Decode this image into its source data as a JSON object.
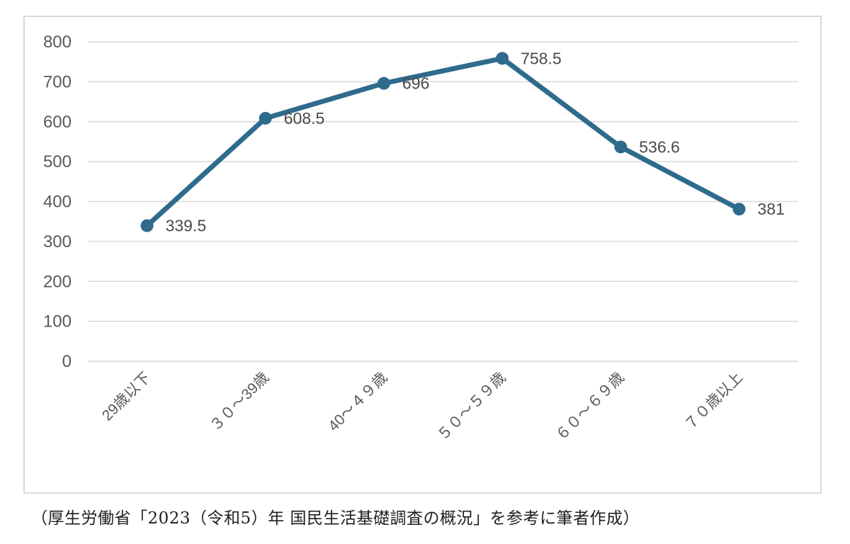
{
  "chart_data": {
    "type": "line",
    "categories": [
      "29歳以下",
      "３０～39歳",
      "40～４９歳",
      "５０～５９歳",
      "６０～６９歳",
      "７０歳以上"
    ],
    "values": [
      339.5,
      608.5,
      696,
      758.5,
      536.6,
      381
    ],
    "data_labels": [
      "339.5",
      "608.5",
      "696",
      "758.5",
      "536.6",
      "381"
    ],
    "title": "",
    "xlabel": "",
    "ylabel": "",
    "ylim": [
      0,
      800
    ],
    "ytick_step": 100,
    "ytick_labels": [
      "0",
      "100",
      "200",
      "300",
      "400",
      "500",
      "600",
      "700",
      "800"
    ],
    "grid": true,
    "legend": "none",
    "colors": {
      "line": "#2e6b8d",
      "marker": "#2e6b8d",
      "gridline": "#d9d9d9",
      "axis_text": "#595959",
      "data_label_text": "#4a4a4a",
      "plot_border": "#d8d8d8"
    }
  },
  "caption": "（厚生労働省「2023（令和5）年 国民生活基礎調査の概況」を参考に筆者作成）"
}
